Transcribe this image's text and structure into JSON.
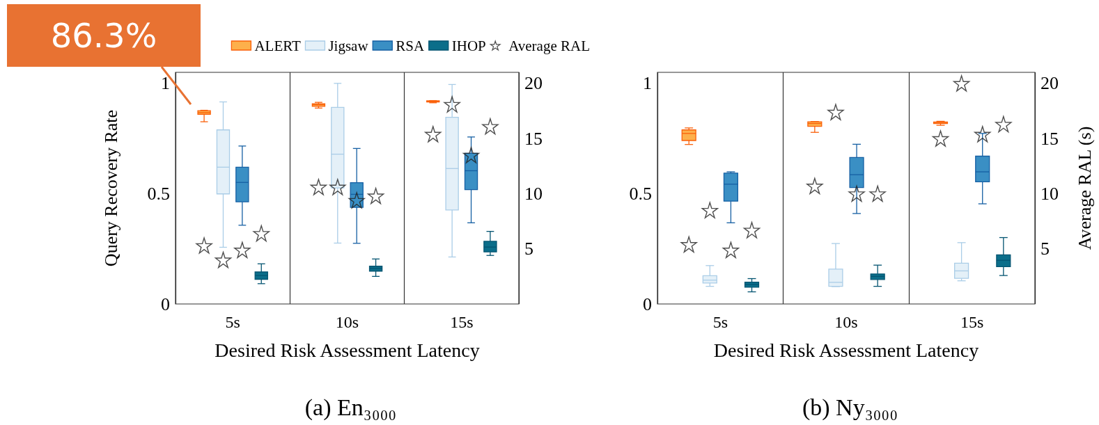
{
  "chart_data": [
    {
      "type": "box",
      "title": "(a) En₃₀₀₀",
      "xlabel": "Desired Risk Assessment Latency",
      "ylabel": "Query Recovery Rate",
      "categories": [
        "5s",
        "10s",
        "15s"
      ],
      "ylim": [
        0,
        1.05
      ],
      "yticks": [
        0,
        0.5,
        1
      ],
      "y2lim": [
        0,
        21
      ],
      "y2ticks": [
        5,
        10,
        15,
        20
      ],
      "grid": "x",
      "legend": "top right",
      "annotations": [
        "86.3%"
      ],
      "series": [
        {
          "name": "ALERT",
          "color": "#fdb04b",
          "boxes": [
            {
              "low": 0.826,
              "q1": 0.86,
              "median": 0.868,
              "q3": 0.876,
              "high": 0.878
            },
            {
              "low": 0.888,
              "q1": 0.896,
              "median": 0.903,
              "q3": 0.908,
              "high": 0.914
            },
            {
              "low": 0.912,
              "q1": 0.916,
              "median": 0.918,
              "q3": 0.921,
              "high": 0.922
            }
          ]
        },
        {
          "name": "Jigsaw",
          "color": "#e4f0f8",
          "boxes": [
            {
              "low": 0.257,
              "q1": 0.499,
              "median": 0.62,
              "q3": 0.789,
              "high": 0.916
            },
            {
              "low": 0.276,
              "q1": 0.526,
              "median": 0.679,
              "q3": 0.891,
              "high": 1.0
            },
            {
              "low": 0.213,
              "q1": 0.426,
              "median": 0.614,
              "q3": 0.846,
              "high": 0.995
            }
          ]
        },
        {
          "name": "RSA",
          "color": "#3a8fc4",
          "boxes": [
            {
              "low": 0.357,
              "q1": 0.463,
              "median": 0.551,
              "q3": 0.62,
              "high": 0.716
            },
            {
              "low": 0.275,
              "q1": 0.438,
              "median": 0.497,
              "q3": 0.55,
              "high": 0.705
            },
            {
              "low": 0.368,
              "q1": 0.518,
              "median": 0.604,
              "q3": 0.683,
              "high": 0.757
            }
          ]
        },
        {
          "name": "IHOP",
          "color": "#0b6e8a",
          "boxes": [
            {
              "low": 0.092,
              "q1": 0.112,
              "median": 0.129,
              "q3": 0.145,
              "high": 0.182
            },
            {
              "low": 0.125,
              "q1": 0.149,
              "median": 0.161,
              "q3": 0.171,
              "high": 0.204
            },
            {
              "low": 0.22,
              "q1": 0.236,
              "median": 0.258,
              "q3": 0.284,
              "high": 0.329
            }
          ]
        },
        {
          "name": "Average RAL",
          "type": "scatter",
          "axis": "y2",
          "marker": "star",
          "color": "#222222",
          "x": [
            "5s",
            "5s",
            "5s",
            "5s",
            "10s",
            "10s",
            "10s",
            "10s",
            "15s",
            "15s",
            "15s",
            "15s"
          ],
          "values": [
            5.3,
            4.0,
            4.9,
            6.4,
            10.6,
            10.6,
            9.4,
            9.8,
            15.4,
            18.1,
            13.5,
            16.1
          ]
        }
      ]
    },
    {
      "type": "box",
      "title": "(b) Ny₃₀₀₀",
      "xlabel": "Desired Risk Assessment Latency",
      "y2label": "Average RAL (s)",
      "categories": [
        "5s",
        "10s",
        "15s"
      ],
      "ylim": [
        0,
        1.05
      ],
      "yticks": [
        0,
        0.5,
        1
      ],
      "y2lim": [
        0,
        21
      ],
      "y2ticks": [
        5,
        10,
        15,
        20
      ],
      "grid": "x",
      "series": [
        {
          "color": "#fdb04b",
          "boxes": [
            {
              "low": 0.723,
              "q1": 0.741,
              "median": 0.773,
              "q3": 0.789,
              "high": 0.798
            },
            {
              "low": 0.778,
              "q1": 0.805,
              "median": 0.818,
              "q3": 0.826,
              "high": 0.827
            },
            {
              "low": 0.81,
              "q1": 0.818,
              "median": 0.823,
              "q3": 0.825,
              "high": 0.828
            }
          ]
        },
        {
          "color": "#e4f0f8",
          "boxes": [
            {
              "low": 0.08,
              "q1": 0.095,
              "median": 0.108,
              "q3": 0.128,
              "high": 0.174
            },
            {
              "low": 0.079,
              "q1": 0.08,
              "median": 0.098,
              "q3": 0.158,
              "high": 0.274
            },
            {
              "low": 0.105,
              "q1": 0.116,
              "median": 0.15,
              "q3": 0.185,
              "high": 0.278
            }
          ]
        },
        {
          "color": "#3a8fc4",
          "boxes": [
            {
              "low": 0.368,
              "q1": 0.466,
              "median": 0.543,
              "q3": 0.593,
              "high": 0.599
            },
            {
              "low": 0.41,
              "q1": 0.528,
              "median": 0.586,
              "q3": 0.664,
              "high": 0.724
            },
            {
              "low": 0.454,
              "q1": 0.554,
              "median": 0.599,
              "q3": 0.67,
              "high": 0.773
            }
          ]
        },
        {
          "color": "#0b6e8a",
          "boxes": [
            {
              "low": 0.055,
              "q1": 0.076,
              "median": 0.088,
              "q3": 0.099,
              "high": 0.115
            },
            {
              "low": 0.08,
              "q1": 0.111,
              "median": 0.125,
              "q3": 0.136,
              "high": 0.176
            },
            {
              "low": 0.129,
              "q1": 0.169,
              "median": 0.198,
              "q3": 0.223,
              "high": 0.301
            }
          ]
        },
        {
          "type": "scatter",
          "axis": "y2",
          "marker": "star",
          "color": "#222222",
          "x": [
            "5s",
            "5s",
            "5s",
            "5s",
            "10s",
            "10s",
            "10s",
            "10s",
            "15s",
            "15s",
            "15s",
            "15s"
          ],
          "values": [
            5.4,
            8.5,
            4.9,
            6.7,
            10.7,
            17.4,
            10.0,
            10.0,
            15.0,
            20.0,
            15.4,
            16.3
          ]
        }
      ]
    }
  ]
}
